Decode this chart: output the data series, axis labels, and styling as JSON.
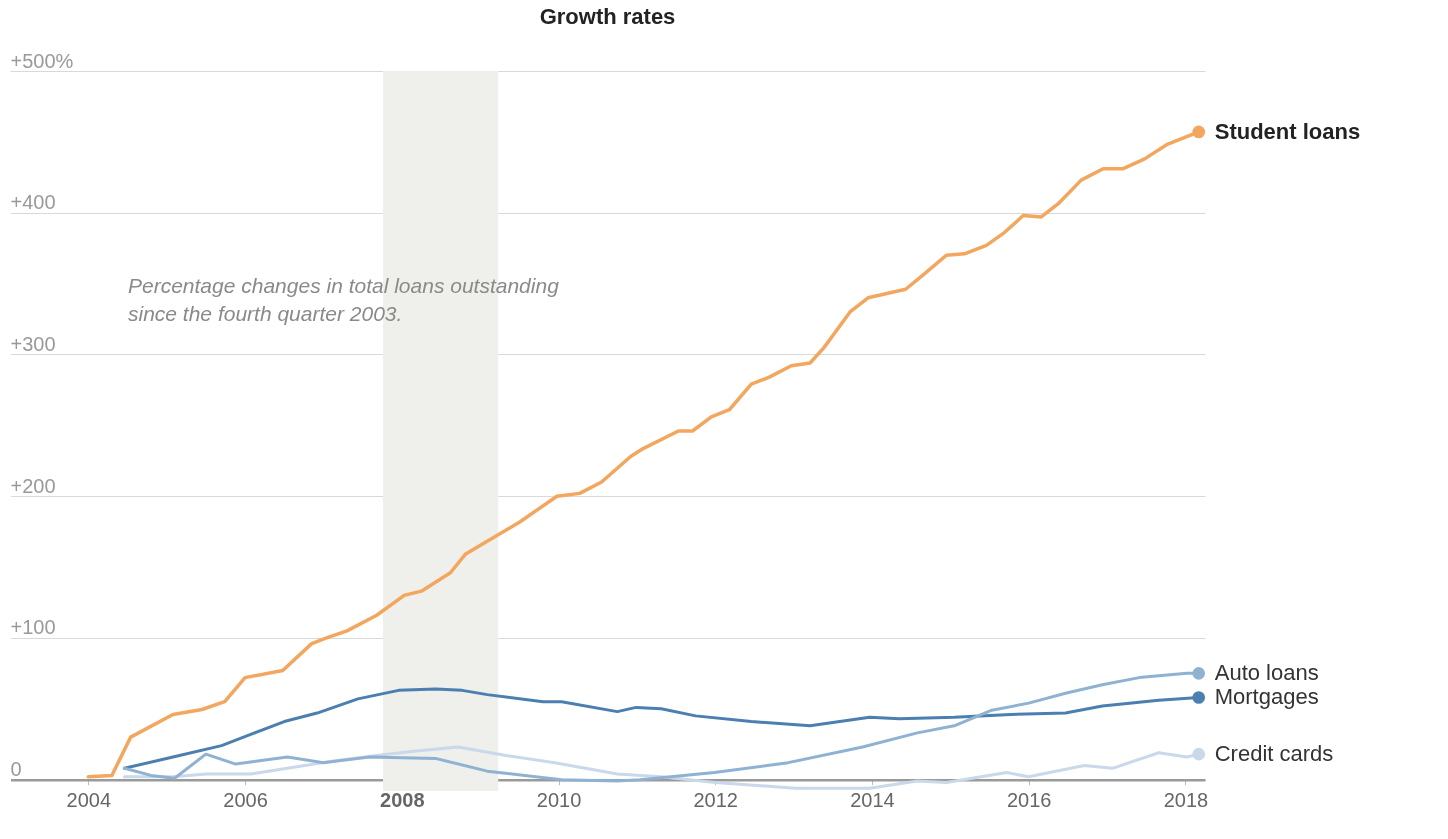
{
  "chart_data": {
    "type": "line",
    "title": "Growth rates",
    "annotations": [
      "Percentage changes in total loans outstanding since the fourth quarter 2003."
    ],
    "xlim": [
      2003,
      2018.25
    ],
    "xticks": [
      2004,
      2006,
      2008,
      2010,
      2012,
      2014,
      2016,
      2018
    ],
    "ylim": [
      -8,
      500
    ],
    "yticks": [
      0,
      {
        "value": 100,
        "label": "+100"
      },
      {
        "value": 200,
        "label": "+200"
      },
      {
        "value": 300,
        "label": "+300"
      },
      {
        "value": 400,
        "label": "+400"
      },
      {
        "value": 500,
        "label": "+500%"
      }
    ],
    "grid": "y",
    "bands": [
      {
        "axis": "x",
        "from": 2007.76,
        "to": 2009.23,
        "color": "#efefeb"
      }
    ],
    "series": [
      {
        "name": "Student loans",
        "color": "#f2a65e",
        "x": [
          2004,
          2004.3,
          2004.54,
          2005.08,
          2005.45,
          2005.74,
          2006,
          2006.48,
          2006.85,
          2007.04,
          2007.3,
          2007.68,
          2008.03,
          2008.25,
          2008.62,
          2008.81,
          2009.51,
          2009.98,
          2010.27,
          2010.55,
          2010.92,
          2011.06,
          2011.53,
          2011.71,
          2011.95,
          2012.18,
          2012.46,
          2012.69,
          2012.97,
          2013.21,
          2013.39,
          2013.72,
          2013.95,
          2014.43,
          2014.65,
          2014.95,
          2015.18,
          2015.46,
          2015.69,
          2015.93,
          2016.16,
          2016.39,
          2016.67,
          2016.95,
          2017.2,
          2017.48,
          2017.76,
          2018.17
        ],
        "values": [
          2,
          3,
          30,
          46,
          49.5,
          55,
          72,
          77,
          96,
          100,
          105,
          116,
          130,
          133,
          146,
          159,
          182,
          200,
          202,
          210,
          228,
          233,
          246,
          246,
          256,
          261,
          279,
          284,
          292,
          294,
          305,
          330,
          340,
          346,
          356,
          370,
          371,
          377,
          386,
          398,
          397,
          407,
          423,
          431,
          431,
          438,
          448,
          457
        ]
      },
      {
        "name": "Auto loans",
        "color": "#8fb2d3",
        "x": [
          2004.46,
          2004.8,
          2005.1,
          2005.5,
          2005.88,
          2006.54,
          2007,
          2007.59,
          2008.43,
          2009.09,
          2009.57,
          2010.04,
          2010.75,
          2011.04,
          2011.99,
          2012.93,
          2013.88,
          2014.58,
          2015.05,
          2015.53,
          2016,
          2016.47,
          2016.94,
          2017.41,
          2018.02,
          2018.17
        ],
        "values": [
          8,
          3,
          1,
          18,
          11,
          16,
          12,
          16,
          15,
          6,
          3,
          0,
          -1,
          0,
          5,
          12,
          23,
          33,
          38,
          49,
          54,
          61,
          67,
          72,
          75,
          75
        ]
      },
      {
        "name": "Mortgages",
        "color": "#4a7fb0",
        "x": [
          2004.46,
          2005.08,
          2005.7,
          2006.03,
          2006.5,
          2006.92,
          2007.44,
          2007.96,
          2008.43,
          2008.77,
          2009.09,
          2009.8,
          2010.04,
          2010.75,
          2010.99,
          2011.31,
          2011.75,
          2012.46,
          2013.21,
          2013.97,
          2014.35,
          2015.05,
          2015.77,
          2016.47,
          2016.94,
          2017.66,
          2018.17
        ],
        "values": [
          8,
          16,
          24,
          31,
          41,
          47,
          57,
          63,
          64,
          63,
          60,
          55,
          55,
          48,
          51,
          50,
          45,
          41,
          38,
          44,
          43,
          44,
          46,
          47,
          52,
          56,
          58
        ]
      },
      {
        "name": "Credit cards",
        "color": "#c9d8ea",
        "x": [
          2004.46,
          2005.08,
          2005.5,
          2006.07,
          2006.54,
          2007.1,
          2007.68,
          2008.15,
          2008.72,
          2009.33,
          2009.95,
          2010.75,
          2011.31,
          2012,
          2013.02,
          2013.97,
          2014.58,
          2014.95,
          2015.72,
          2016,
          2016.71,
          2017.07,
          2017.66,
          2018.02,
          2018.17
        ],
        "values": [
          2,
          2,
          4,
          4,
          8,
          13,
          17,
          20,
          23,
          17,
          12,
          4,
          2,
          -2,
          -6,
          -6,
          -1,
          -2,
          5,
          2,
          10,
          8,
          19,
          16,
          18
        ]
      }
    ]
  }
}
